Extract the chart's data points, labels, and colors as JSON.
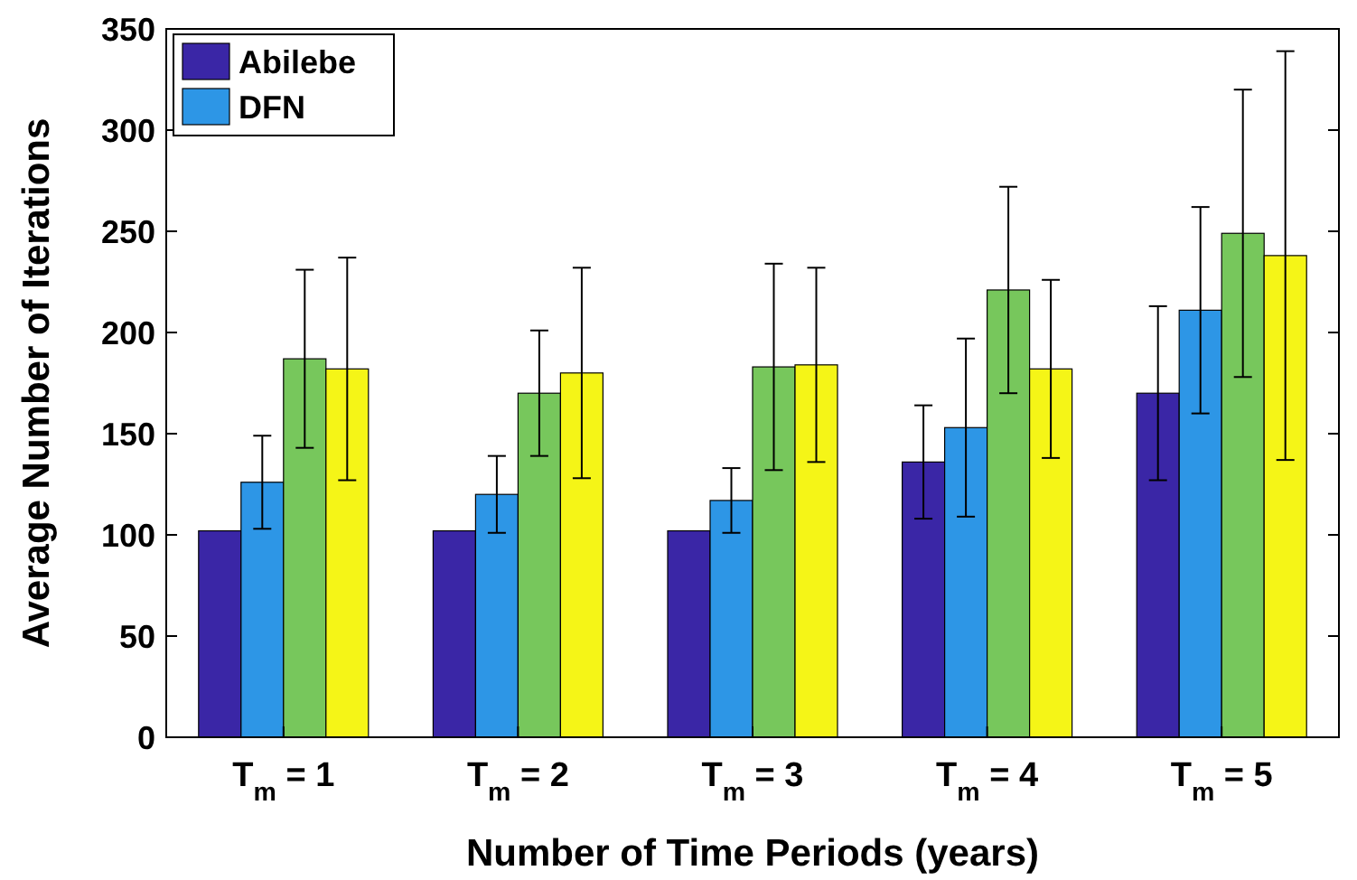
{
  "chart_data": {
    "type": "bar",
    "xlabel": "Number of Time Periods (years)",
    "ylabel": "Average Number of Iterations",
    "categories": [
      "T$_{m}$ = 1",
      "T$_{m}$ = 2",
      "T$_{m}$ = 3",
      "T$_{m}$ = 4",
      "T$_{m}$ = 5"
    ],
    "series": [
      {
        "name": "Abilebe",
        "color": "#3a26a6",
        "values": [
          102,
          102,
          102,
          136,
          170
        ],
        "errors": [
          null,
          null,
          null,
          28,
          43
        ]
      },
      {
        "name": "DFN",
        "color": "#2d96e6",
        "values": [
          126,
          120,
          117,
          153,
          211
        ],
        "errors": [
          23,
          19,
          16,
          44,
          51
        ]
      },
      {
        "color": "#77c75c",
        "values": [
          187,
          170,
          183,
          221,
          249
        ],
        "errors": [
          44,
          31,
          51,
          51,
          71
        ]
      },
      {
        "color": "#f5f517",
        "values": [
          182,
          180,
          184,
          182,
          238
        ],
        "errors": [
          55,
          52,
          48,
          44,
          101
        ]
      }
    ],
    "ylim": [
      0,
      350
    ],
    "yticks": [
      0,
      50,
      100,
      150,
      200,
      250,
      300,
      350
    ],
    "grid": false,
    "legend": "top left"
  }
}
